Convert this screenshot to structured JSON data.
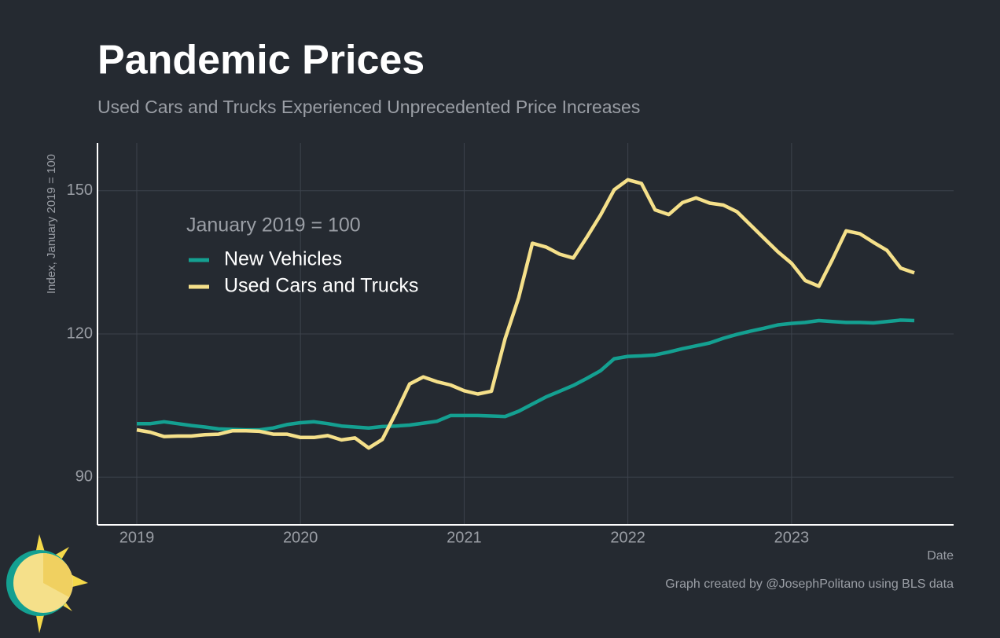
{
  "chart_data": {
    "type": "line",
    "title": "Pandemic Prices",
    "subtitle": "Used Cars and Trucks Experienced Unprecedented Price Increases",
    "y_label": "Index, January 2019 = 100",
    "x_label": "Date",
    "legend_title": "January 2019 = 100",
    "source": "Graph created by @JosephPolitano using BLS data",
    "x": [
      2019,
      2019.0833,
      2019.1667,
      2019.25,
      2019.3333,
      2019.4167,
      2019.5,
      2019.5833,
      2019.6667,
      2019.75,
      2019.8333,
      2019.9167,
      2020,
      2020.0833,
      2020.1667,
      2020.25,
      2020.3333,
      2020.4167,
      2020.5,
      2020.5833,
      2020.6667,
      2020.75,
      2020.8333,
      2020.9167,
      2021,
      2021.0833,
      2021.1667,
      2021.25,
      2021.3333,
      2021.4167,
      2021.5,
      2021.5833,
      2021.6667,
      2021.75,
      2021.8333,
      2021.9167,
      2022,
      2022.0833,
      2022.1667,
      2022.25,
      2022.3333,
      2022.4167,
      2022.5,
      2022.5833,
      2022.6667,
      2022.75,
      2022.8333,
      2022.9167,
      2023,
      2023.0833,
      2023.1667,
      2023.25,
      2023.3333,
      2023.4167,
      2023.5,
      2023.5833,
      2023.6667,
      2023.75
    ],
    "series": [
      {
        "name": "New Vehicles",
        "color": "#14a091",
        "values": [
          101.2,
          101.2,
          101.6,
          101.2,
          100.8,
          100.5,
          100.1,
          100.0,
          99.9,
          99.9,
          100.3,
          101.0,
          101.4,
          101.6,
          101.2,
          100.7,
          100.5,
          100.3,
          100.6,
          100.7,
          100.9,
          101.3,
          101.7,
          102.9,
          102.9,
          102.9,
          102.8,
          102.7,
          103.8,
          105.3,
          106.8,
          108.0,
          109.2,
          110.7,
          112.3,
          114.8,
          115.3,
          115.4,
          115.6,
          116.2,
          116.9,
          117.5,
          118.1,
          119.1,
          119.9,
          120.6,
          121.2,
          121.9,
          122.2,
          122.4,
          122.8,
          122.6,
          122.4,
          122.4,
          122.3,
          122.6,
          122.9,
          122.8
        ]
      },
      {
        "name": "Used Cars and Trucks",
        "color": "#f5e08a",
        "values": [
          99.9,
          99.4,
          98.5,
          98.6,
          98.6,
          98.9,
          99.0,
          99.7,
          99.7,
          99.6,
          99.0,
          99.0,
          98.3,
          98.3,
          98.7,
          97.8,
          98.2,
          96.1,
          97.9,
          103.5,
          109.5,
          111.0,
          110.0,
          109.3,
          108.1,
          107.4,
          108.0,
          119.0,
          127.6,
          139.0,
          138.2,
          136.7,
          135.9,
          140.3,
          144.9,
          150.2,
          152.3,
          151.5,
          146.0,
          145.0,
          147.5,
          148.5,
          147.4,
          147.0,
          145.6,
          142.8,
          140.0,
          137.2,
          134.8,
          131.2,
          130.0,
          135.6,
          141.6,
          141.0,
          139.2,
          137.5,
          133.8,
          132.8
        ]
      }
    ],
    "xlim": [
      2018.76,
      2023.99
    ],
    "xticks": [
      2019,
      2020,
      2021,
      2022,
      2023
    ],
    "ylim": [
      80,
      160
    ],
    "yticks": [
      90,
      120,
      150
    ],
    "grid": true
  }
}
